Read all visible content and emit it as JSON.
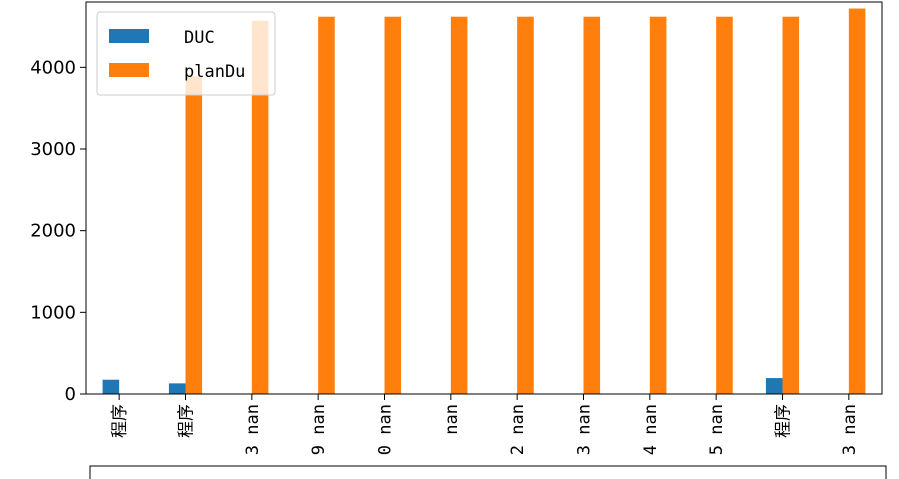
{
  "chart_data": {
    "type": "bar",
    "title": "",
    "xlabel": "",
    "ylabel": "",
    "ylim": [
      0,
      4800
    ],
    "yticks": [
      0,
      1000,
      2000,
      3000,
      4000
    ],
    "ytick_labels": [
      "0",
      "1000",
      "2000",
      "3000",
      "4000"
    ],
    "categories": [
      "程序",
      "程序",
      "nan",
      "nan",
      "nan",
      "nan",
      "nan",
      "nan",
      "nan",
      "nan",
      "程序",
      "nan"
    ],
    "category_partial_marks": [
      "",
      "",
      "3",
      "9",
      "0",
      "",
      "2",
      "3",
      "4",
      "5",
      "",
      "3"
    ],
    "series": [
      {
        "name": "DUC",
        "color": "#1f77b4",
        "values": [
          175,
          130,
          0,
          0,
          0,
          0,
          0,
          0,
          0,
          0,
          195,
          0
        ]
      },
      {
        "name": "planDu",
        "color": "#ff7f0e",
        "values": [
          0,
          3890,
          4570,
          4620,
          4620,
          4620,
          4620,
          4620,
          4620,
          4620,
          4620,
          4720
        ]
      }
    ],
    "legend": {
      "position": "top-left"
    },
    "grid": false
  }
}
